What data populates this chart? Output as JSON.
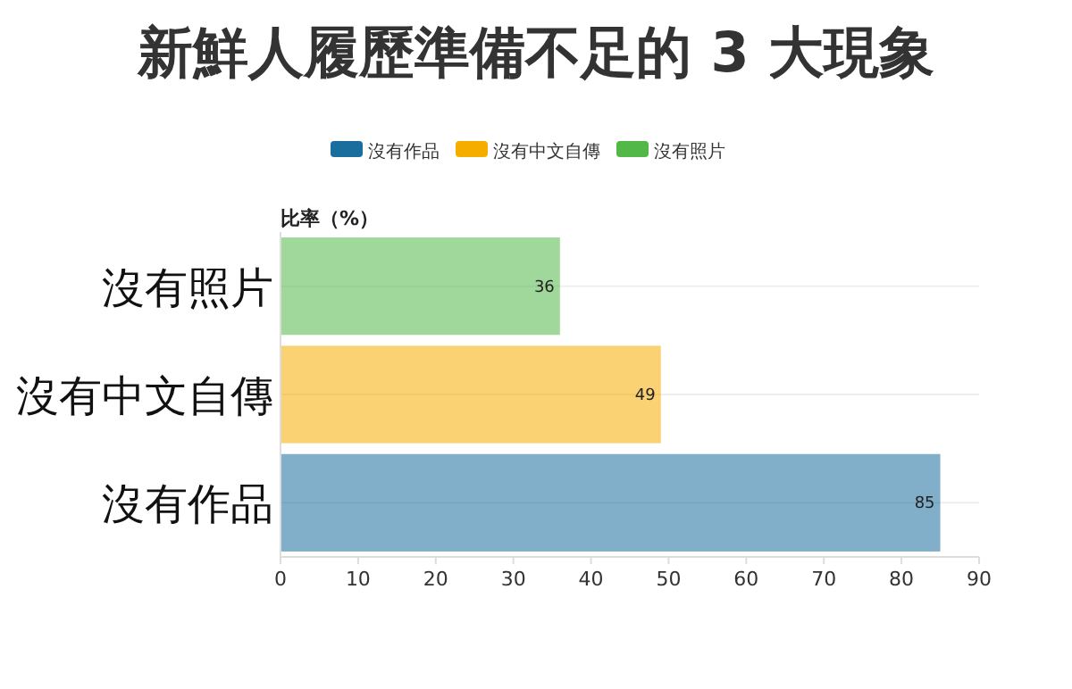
{
  "chart_data": {
    "type": "bar",
    "orientation": "horizontal",
    "title": "新鮮人履歷準備不足的 3 大現象",
    "xlabel": "比率（%）",
    "categories": [
      "沒有照片",
      "沒有中文自傳",
      "沒有作品"
    ],
    "series": [
      {
        "name": "沒有作品",
        "color": "#1a6e9e",
        "values": [
          null,
          null,
          85
        ]
      },
      {
        "name": "沒有中文自傳",
        "color": "#f5ad00",
        "values": [
          null,
          49,
          null
        ]
      },
      {
        "name": "沒有照片",
        "color": "#52b848",
        "values": [
          36,
          null,
          null
        ]
      }
    ],
    "xlim": [
      0,
      90
    ],
    "xticks": [
      0,
      10,
      20,
      30,
      40,
      50,
      60,
      70,
      80,
      90
    ],
    "grid": "y",
    "legend": "top",
    "data_labels": true
  }
}
